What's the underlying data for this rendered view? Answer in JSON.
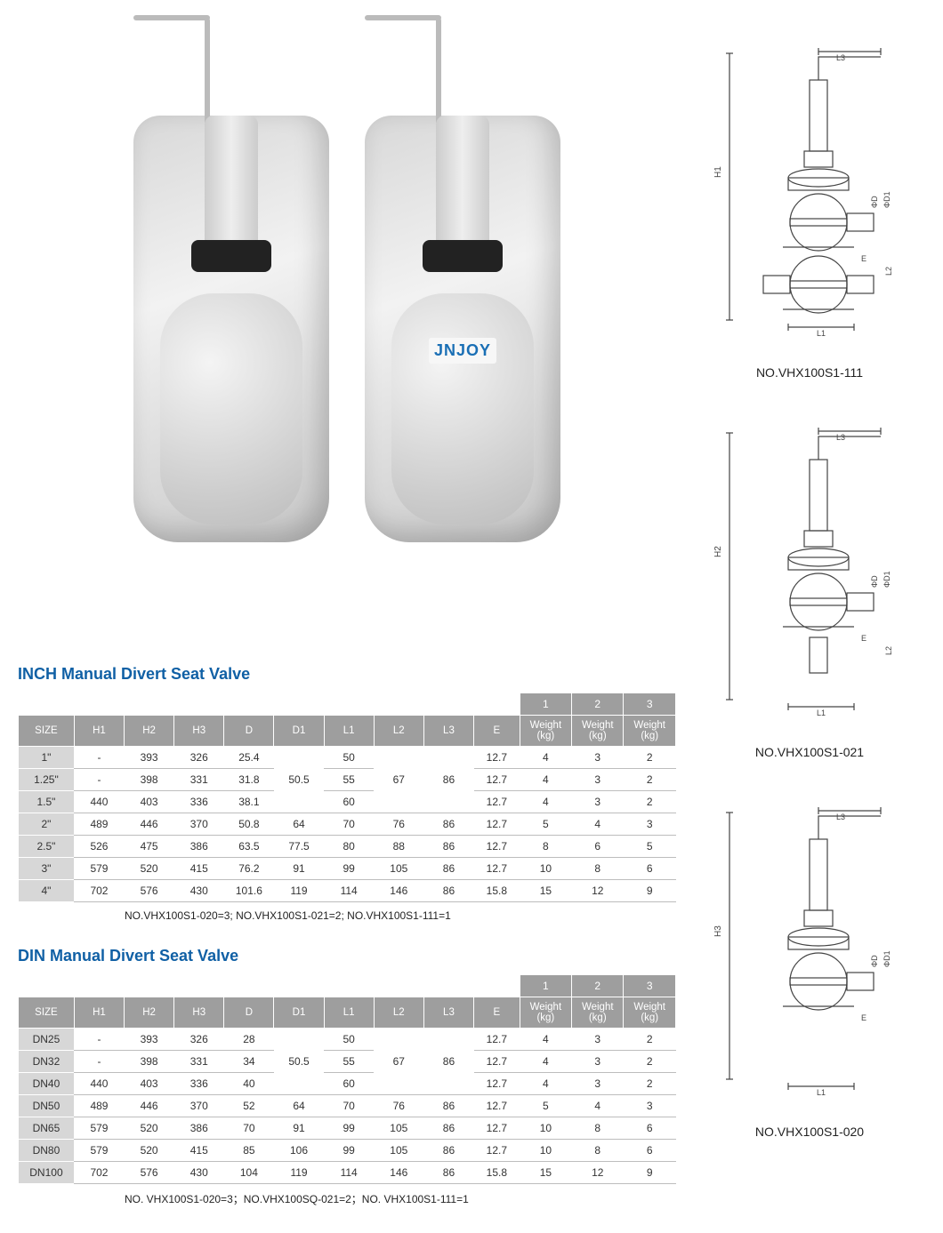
{
  "brand_on_valve": "JNJOY",
  "colors": {
    "title": "#1060a5",
    "header_bg": "#9e9e9e",
    "header_text": "#ffffff",
    "size_col_bg": "#d7d7d7",
    "row_border": "#bdbdbd",
    "text": "#333333",
    "diagram_line": "#444444"
  },
  "weight_header_labels": [
    "1",
    "2",
    "3"
  ],
  "inch_table": {
    "title": "INCH Manual Divert Seat Valve",
    "columns": [
      "SIZE",
      "H1",
      "H2",
      "H3",
      "D",
      "D1",
      "L1",
      "L2",
      "L3",
      "E",
      "Weight (kg)",
      "Weight (kg)",
      "Weight (kg)"
    ],
    "rows": [
      {
        "size": "1\"",
        "h1": "-",
        "h2": "393",
        "h3": "326",
        "d": "25.4",
        "d1": "50.5",
        "l1": "50",
        "l2": "67",
        "l3": "86",
        "e": "12.7",
        "w1": "4",
        "w2": "3",
        "w3": "2"
      },
      {
        "size": "1.25\"",
        "h1": "-",
        "h2": "398",
        "h3": "331",
        "d": "31.8",
        "d1": "",
        "l1": "55",
        "l2": "",
        "l3": "",
        "e": "12.7",
        "w1": "4",
        "w2": "3",
        "w3": "2"
      },
      {
        "size": "1.5\"",
        "h1": "440",
        "h2": "403",
        "h3": "336",
        "d": "38.1",
        "d1": "",
        "l1": "60",
        "l2": "",
        "l3": "",
        "e": "12.7",
        "w1": "4",
        "w2": "3",
        "w3": "2"
      },
      {
        "size": "2\"",
        "h1": "489",
        "h2": "446",
        "h3": "370",
        "d": "50.8",
        "d1": "64",
        "l1": "70",
        "l2": "76",
        "l3": "86",
        "e": "12.7",
        "w1": "5",
        "w2": "4",
        "w3": "3"
      },
      {
        "size": "2.5\"",
        "h1": "526",
        "h2": "475",
        "h3": "386",
        "d": "63.5",
        "d1": "77.5",
        "l1": "80",
        "l2": "88",
        "l3": "86",
        "e": "12.7",
        "w1": "8",
        "w2": "6",
        "w3": "5"
      },
      {
        "size": "3\"",
        "h1": "579",
        "h2": "520",
        "h3": "415",
        "d": "76.2",
        "d1": "91",
        "l1": "99",
        "l2": "105",
        "l3": "86",
        "e": "12.7",
        "w1": "10",
        "w2": "8",
        "w3": "6"
      },
      {
        "size": "4\"",
        "h1": "702",
        "h2": "576",
        "h3": "430",
        "d": "101.6",
        "d1": "119",
        "l1": "114",
        "l2": "146",
        "l3": "86",
        "e": "15.8",
        "w1": "15",
        "w2": "12",
        "w3": "9"
      }
    ],
    "d1_merge_first3": "50.5",
    "l2_merge_first3": "67",
    "l3_merge_first3": "86",
    "note": "NO.VHX100S1-020=3; NO.VHX100S1-021=2; NO.VHX100S1-111=1"
  },
  "din_table": {
    "title": "DIN Manual Divert Seat Valve",
    "columns": [
      "SIZE",
      "H1",
      "H2",
      "H3",
      "D",
      "D1",
      "L1",
      "L2",
      "L3",
      "E",
      "Weight (kg)",
      "Weight (kg)",
      "Weight (kg)"
    ],
    "rows": [
      {
        "size": "DN25",
        "h1": "-",
        "h2": "393",
        "h3": "326",
        "d": "28",
        "d1": "50.5",
        "l1": "50",
        "l2": "67",
        "l3": "86",
        "e": "12.7",
        "w1": "4",
        "w2": "3",
        "w3": "2"
      },
      {
        "size": "DN32",
        "h1": "-",
        "h2": "398",
        "h3": "331",
        "d": "34",
        "d1": "",
        "l1": "55",
        "l2": "",
        "l3": "",
        "e": "12.7",
        "w1": "4",
        "w2": "3",
        "w3": "2"
      },
      {
        "size": "DN40",
        "h1": "440",
        "h2": "403",
        "h3": "336",
        "d": "40",
        "d1": "",
        "l1": "60",
        "l2": "",
        "l3": "",
        "e": "12.7",
        "w1": "4",
        "w2": "3",
        "w3": "2"
      },
      {
        "size": "DN50",
        "h1": "489",
        "h2": "446",
        "h3": "370",
        "d": "52",
        "d1": "64",
        "l1": "70",
        "l2": "76",
        "l3": "86",
        "e": "12.7",
        "w1": "5",
        "w2": "4",
        "w3": "3"
      },
      {
        "size": "DN65",
        "h1": "579",
        "h2": "520",
        "h3": "386",
        "d": "70",
        "d1": "91",
        "l1": "99",
        "l2": "105",
        "l3": "86",
        "e": "12.7",
        "w1": "10",
        "w2": "8",
        "w3": "6"
      },
      {
        "size": "DN80",
        "h1": "579",
        "h2": "520",
        "h3": "415",
        "d": "85",
        "d1": "106",
        "l1": "99",
        "l2": "105",
        "l3": "86",
        "e": "12.7",
        "w1": "10",
        "w2": "8",
        "w3": "6"
      },
      {
        "size": "DN100",
        "h1": "702",
        "h2": "576",
        "h3": "430",
        "d": "104",
        "d1": "119",
        "l1": "114",
        "l2": "146",
        "l3": "86",
        "e": "15.8",
        "w1": "15",
        "w2": "12",
        "w3": "9"
      }
    ],
    "d1_merge_first3": "50.5",
    "l2_merge_first3": "67",
    "l3_merge_first3": "86",
    "note": "NO. VHX100S1-020=3；NO.VHX100SQ-021=2；NO. VHX100S1-111=1"
  },
  "diagrams": [
    {
      "caption": "NO.VHX100S1-111",
      "height_label": "H1",
      "dims": [
        "L3",
        "L1",
        "L2",
        "ΦD",
        "ΦD1",
        "E"
      ],
      "chambers": 2
    },
    {
      "caption": "NO.VHX100S1-021",
      "height_label": "H2",
      "dims": [
        "L3",
        "L1",
        "L2",
        "ΦD",
        "ΦD1",
        "E"
      ],
      "chambers": 1,
      "bottom_port": true
    },
    {
      "caption": "NO.VHX100S1-020",
      "height_label": "H3",
      "dims": [
        "L3",
        "L1",
        "ΦD",
        "ΦD1",
        "E"
      ],
      "chambers": 1
    }
  ]
}
